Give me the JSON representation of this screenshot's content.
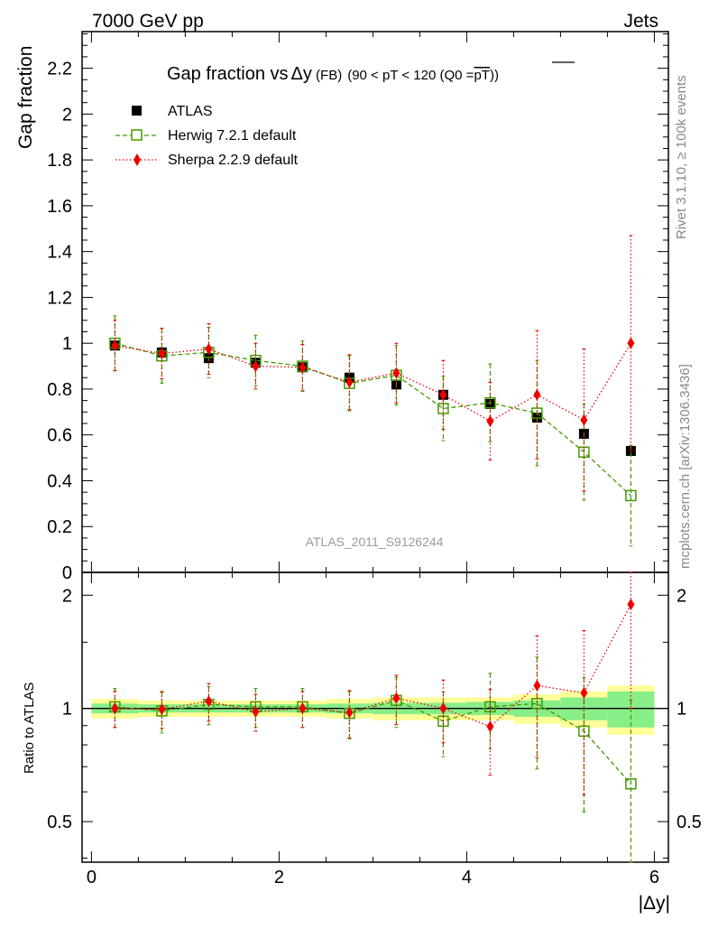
{
  "header": {
    "left": "7000 GeV pp",
    "right": "Jets"
  },
  "side_labels": {
    "rivet": "Rivet 3.1.10, ≥ 100k events",
    "mcplots": "mcplots.cern.ch [arXiv:1306.3436]"
  },
  "chart_data": {
    "type": "scatter",
    "title": {
      "main": "Gap fraction vs",
      "delta": "Δy",
      "fb": " (FB)",
      "cut": "(90 < pT < 120 (Q0 =",
      "pt_bar": "pT",
      "close": "))"
    },
    "watermark": "ATLAS_2011_S9126244",
    "ylabel": "Gap fraction",
    "ratio_ylabel": "Ratio to ATLAS",
    "xlabel": "|Δy|",
    "xlim": [
      -0.1,
      6.15
    ],
    "ylim": [
      0,
      2.36
    ],
    "ratio_ylim": [
      0.39,
      2.3
    ],
    "x_ticks": [
      {
        "value": 0,
        "label": "0"
      },
      {
        "value": 2,
        "label": "2"
      },
      {
        "value": 4,
        "label": "4"
      },
      {
        "value": 6,
        "label": "6"
      }
    ],
    "y_ticks": [
      {
        "value": 0,
        "label": "0"
      },
      {
        "value": 0.2,
        "label": "0.2"
      },
      {
        "value": 0.4,
        "label": "0.4"
      },
      {
        "value": 0.6,
        "label": "0.6"
      },
      {
        "value": 0.8,
        "label": "0.8"
      },
      {
        "value": 1.0,
        "label": "1"
      },
      {
        "value": 1.2,
        "label": "1.2"
      },
      {
        "value": 1.4,
        "label": "1.4"
      },
      {
        "value": 1.6,
        "label": "1.6"
      },
      {
        "value": 1.8,
        "label": "1.8"
      },
      {
        "value": 2.0,
        "label": "2"
      },
      {
        "value": 2.2,
        "label": "2.2"
      }
    ],
    "ratio_ticks": [
      {
        "value": 0.5,
        "label": "0.5"
      },
      {
        "value": 1,
        "label": "1"
      },
      {
        "value": 2,
        "label": "2"
      }
    ],
    "x": [
      0.25,
      0.75,
      1.25,
      1.75,
      2.25,
      2.75,
      3.25,
      3.75,
      4.25,
      4.75,
      5.25,
      5.75
    ],
    "bin_edges": [
      0,
      0.5,
      1.0,
      1.5,
      2.0,
      2.5,
      3.0,
      3.5,
      4.0,
      4.5,
      5.0,
      5.5,
      6.0
    ],
    "series": [
      {
        "name": "ATLAS",
        "color": "#000000",
        "values": [
          0.99,
          0.96,
          0.935,
          0.915,
          0.895,
          0.85,
          0.82,
          0.775,
          0.735,
          0.675,
          0.605,
          0.53
        ],
        "err": [
          0.01,
          0.01,
          0.01,
          0.01,
          0.01,
          0.01,
          0.01,
          0.012,
          0.012,
          0.013,
          0.015,
          0.015
        ],
        "band_yellow": [
          0.06,
          0.05,
          0.05,
          0.05,
          0.05,
          0.06,
          0.07,
          0.07,
          0.07,
          0.09,
          0.11,
          0.15
        ],
        "band_green": [
          0.03,
          0.025,
          0.025,
          0.025,
          0.025,
          0.03,
          0.035,
          0.035,
          0.04,
          0.05,
          0.07,
          0.11
        ]
      },
      {
        "name": "Herwig 7.2.1 default",
        "color": "#449900",
        "values": [
          1.0,
          0.945,
          0.96,
          0.925,
          0.9,
          0.825,
          0.86,
          0.715,
          0.74,
          0.695,
          0.525,
          0.335
        ],
        "err": [
          0.12,
          0.12,
          0.11,
          0.11,
          0.11,
          0.12,
          0.13,
          0.14,
          0.17,
          0.23,
          0.21,
          0.22
        ],
        "ratio": [
          1.01,
          0.985,
          1.025,
          1.01,
          1.01,
          0.97,
          1.05,
          0.925,
          1.01,
          1.03,
          0.87,
          0.63
        ],
        "ratio_err": [
          0.12,
          0.125,
          0.12,
          0.12,
          0.12,
          0.14,
          0.16,
          0.18,
          0.23,
          0.34,
          0.34,
          0.42
        ]
      },
      {
        "name": "Sherpa 2.2.9 default",
        "color": "#ee0000",
        "values": [
          0.99,
          0.955,
          0.975,
          0.9,
          0.895,
          0.83,
          0.87,
          0.775,
          0.66,
          0.775,
          0.665,
          1.0
        ],
        "err": [
          0.11,
          0.11,
          0.11,
          0.1,
          0.1,
          0.12,
          0.13,
          0.15,
          0.17,
          0.28,
          0.31,
          0.47
        ],
        "ratio": [
          1.0,
          0.995,
          1.045,
          0.98,
          1.0,
          0.975,
          1.065,
          1.0,
          0.895,
          1.15,
          1.1,
          1.89
        ],
        "ratio_err": [
          0.11,
          0.11,
          0.12,
          0.11,
          0.11,
          0.14,
          0.16,
          0.19,
          0.23,
          0.41,
          0.51,
          0.89
        ]
      }
    ],
    "legend": {
      "placement": "top-left"
    }
  }
}
